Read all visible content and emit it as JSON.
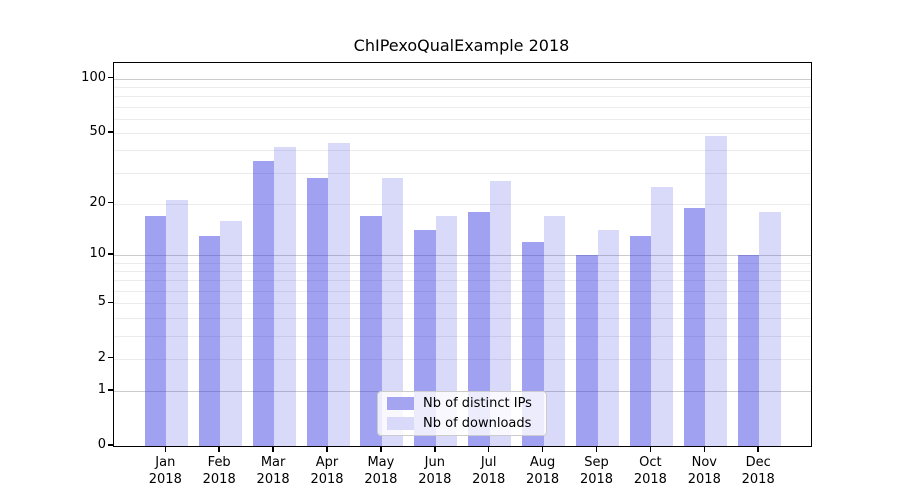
{
  "chart_data": {
    "type": "bar",
    "title": "ChIPexoQualExample 2018",
    "xlabel": "",
    "ylabel": "",
    "yscale": "log1p",
    "ylim": [
      0,
      122
    ],
    "yticks": [
      0,
      1,
      2,
      5,
      10,
      20,
      50,
      100
    ],
    "grid": {
      "major": [
        1,
        10,
        100
      ],
      "minor": [
        2,
        3,
        4,
        5,
        6,
        7,
        8,
        9,
        20,
        30,
        40,
        50,
        60,
        70,
        80,
        90
      ]
    },
    "categories": [
      "Jan",
      "Feb",
      "Mar",
      "Apr",
      "May",
      "Jun",
      "Jul",
      "Aug",
      "Sep",
      "Oct",
      "Nov",
      "Dec"
    ],
    "x_year_line": "2018",
    "series": [
      {
        "name": "Nb of distinct IPs",
        "values": [
          17,
          13,
          35,
          28,
          17,
          14,
          18,
          12,
          10,
          13,
          19,
          10
        ],
        "color": "rgba(47,47,226,0.45)",
        "swatch_color": "#a4a4f1"
      },
      {
        "name": "Nb of downloads",
        "values": [
          21,
          16,
          42,
          44,
          28,
          17,
          27,
          17,
          14,
          25,
          48,
          18
        ],
        "color": "rgba(47,47,226,0.18)",
        "swatch_color": "#d9d9f9"
      }
    ],
    "legend_position": "bottom-center",
    "colors": {
      "grid_major": "#cccccc",
      "grid_minor": "#ececec",
      "axis": "#000000",
      "text": "#000000",
      "background": "#ffffff"
    }
  }
}
